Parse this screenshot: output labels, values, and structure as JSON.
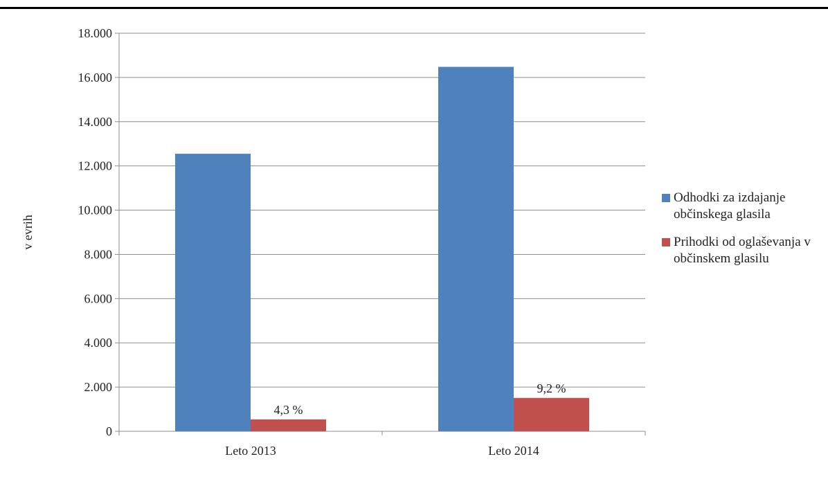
{
  "chart_data": {
    "type": "bar",
    "categories": [
      "Leto 2013",
      "Leto 2014"
    ],
    "series": [
      {
        "name": "Odhodki za izdajanje občinskega glasila",
        "values": [
          12550,
          16480
        ],
        "color": "#4F81BD"
      },
      {
        "name": "Prihodki od oglaševanja v občinskem glasilu",
        "values": [
          540,
          1510
        ],
        "color": "#C0504D",
        "labels": [
          "4,3 %",
          "9,2 %"
        ]
      }
    ],
    "ylabel": "v evrih",
    "ylim": [
      0,
      18000
    ],
    "yticks": [
      0,
      2000,
      4000,
      6000,
      8000,
      10000,
      12000,
      14000,
      16000,
      18000
    ],
    "ytick_labels": [
      "0",
      "2.000",
      "4.000",
      "6.000",
      "8.000",
      "10.000",
      "12.000",
      "14.000",
      "16.000",
      "18.000"
    ],
    "grid": true,
    "legend": "right"
  }
}
